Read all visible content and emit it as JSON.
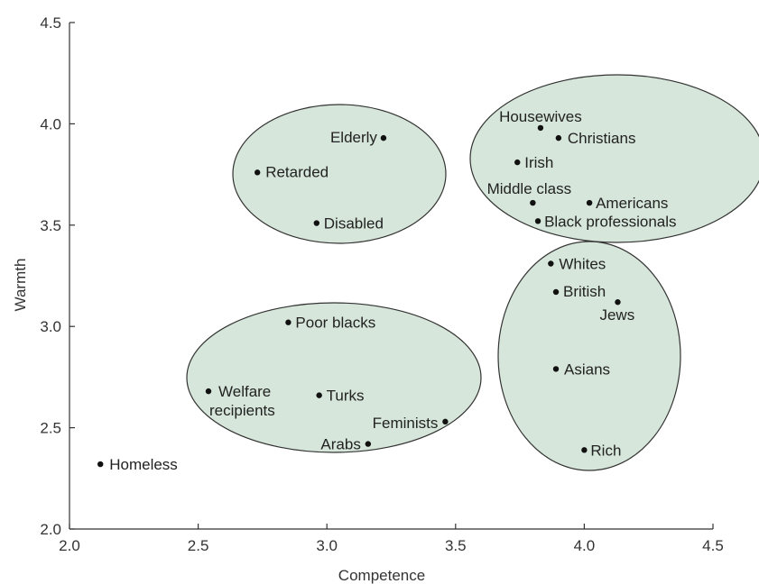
{
  "chart_data": {
    "type": "scatter",
    "title": "",
    "xlabel": "Competence",
    "ylabel": "Warmth",
    "xlim": [
      2.0,
      4.5
    ],
    "ylim": [
      2.0,
      4.5
    ],
    "x_ticks": [
      "2.0",
      "2.5",
      "3.0",
      "3.5",
      "4.0",
      "4.5"
    ],
    "y_ticks": [
      "2.0",
      "2.5",
      "3.0",
      "3.5",
      "4.0",
      "4.5"
    ],
    "grid": false,
    "legend": "none",
    "point_color": "#111111",
    "cluster_fill": "#d6e6da",
    "points": [
      {
        "label": "Elderly",
        "x": 3.22,
        "y": 3.93
      },
      {
        "label": "Retarded",
        "x": 2.73,
        "y": 3.76
      },
      {
        "label": "Disabled",
        "x": 2.96,
        "y": 3.51
      },
      {
        "label": "Housewives",
        "x": 3.83,
        "y": 3.98
      },
      {
        "label": "Christians",
        "x": 3.9,
        "y": 3.93
      },
      {
        "label": "Irish",
        "x": 3.74,
        "y": 3.81
      },
      {
        "label": "Middle class",
        "x": 3.8,
        "y": 3.61
      },
      {
        "label": "Americans",
        "x": 4.02,
        "y": 3.61
      },
      {
        "label": "Black professionals",
        "x": 3.82,
        "y": 3.52
      },
      {
        "label": "Whites",
        "x": 3.87,
        "y": 3.31
      },
      {
        "label": "British",
        "x": 3.89,
        "y": 3.17
      },
      {
        "label": "Jews",
        "x": 4.13,
        "y": 3.12
      },
      {
        "label": "Asians",
        "x": 3.89,
        "y": 2.79
      },
      {
        "label": "Rich",
        "x": 4.0,
        "y": 2.39
      },
      {
        "label": "Poor blacks",
        "x": 2.85,
        "y": 3.02
      },
      {
        "label": "Welfare recipients",
        "x": 2.54,
        "y": 2.68
      },
      {
        "label": "Turks",
        "x": 2.97,
        "y": 2.66
      },
      {
        "label": "Feminists",
        "x": 3.46,
        "y": 2.53
      },
      {
        "label": "Arabs",
        "x": 3.16,
        "y": 2.42
      },
      {
        "label": "Homeless",
        "x": 2.12,
        "y": 2.32
      }
    ]
  }
}
